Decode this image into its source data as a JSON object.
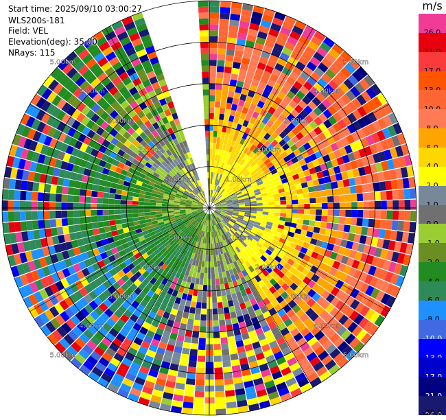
{
  "info": {
    "start_time": "Start time: 2025/09/10 03:00:27",
    "site": "WLS200s-181",
    "field": "Field: VEL",
    "elevation": "Elevation(deg): 35.00",
    "nrays": "NRays: 115"
  },
  "colorbar": {
    "unit": "m/s",
    "segments": [
      {
        "label": "26.0",
        "color": "#f03c96"
      },
      {
        "label": "21.0",
        "color": "#e8000e"
      },
      {
        "label": "17.0",
        "color": "#fb3a3c"
      },
      {
        "label": "13.0",
        "color": "#ff5500"
      },
      {
        "label": "10.0",
        "color": "#ff6633"
      },
      {
        "label": "8.0",
        "color": "#ff7a55"
      },
      {
        "label": "6.0",
        "color": "#ffa500"
      },
      {
        "label": "4.0",
        "color": "#ffd700"
      },
      {
        "label": "2.0",
        "color": "#ffff00"
      },
      {
        "label": "1.0",
        "color": "#778899"
      },
      {
        "label": "0.0",
        "color": "#707070"
      },
      {
        "label": "-1.0",
        "color": "#9acd32"
      },
      {
        "label": "-2.0",
        "color": "#6b8e23"
      },
      {
        "label": "-4.0",
        "color": "#228b22"
      },
      {
        "label": "-6.0",
        "color": "#2e8b57"
      },
      {
        "label": "-8.0",
        "color": "#1e90ff"
      },
      {
        "label": "-10.0",
        "color": "#4169e1"
      },
      {
        "label": "-13.0",
        "color": "#0000ff"
      },
      {
        "label": "-17.0",
        "color": "#0000cd"
      },
      {
        "label": "-21.0",
        "color": "#000080"
      },
      {
        "label": "-26.0",
        "color": "#191970"
      }
    ],
    "bottom_label": "-30.0"
  },
  "chart_data": {
    "type": "heatmap",
    "title": "WLS200s-181",
    "field": "VEL",
    "unit": "m/s",
    "elevation_deg": 35.0,
    "n_rays": 115,
    "max_range_km": 5.0,
    "range_rings_km": [
      1,
      2,
      3,
      4,
      5
    ],
    "range_ring_labels": [
      "1.00km",
      "2.00km",
      "3.00km",
      "4.00km",
      "5.00km"
    ],
    "blanked_sector_deg": [
      340,
      358
    ],
    "sector_medians_ms": [
      {
        "from_deg": 0,
        "to_deg": 60,
        "near_ms": 2,
        "far_ms": 13
      },
      {
        "from_deg": 60,
        "to_deg": 150,
        "near_ms": 0,
        "far_ms": 12
      },
      {
        "from_deg": 150,
        "to_deg": 200,
        "near_ms": -1,
        "far_ms": 3
      },
      {
        "from_deg": 200,
        "to_deg": 250,
        "near_ms": -2,
        "far_ms": -8
      },
      {
        "from_deg": 250,
        "to_deg": 300,
        "near_ms": -1,
        "far_ms": -6
      },
      {
        "from_deg": 300,
        "to_deg": 360,
        "near_ms": 2,
        "far_ms": -4
      }
    ]
  }
}
